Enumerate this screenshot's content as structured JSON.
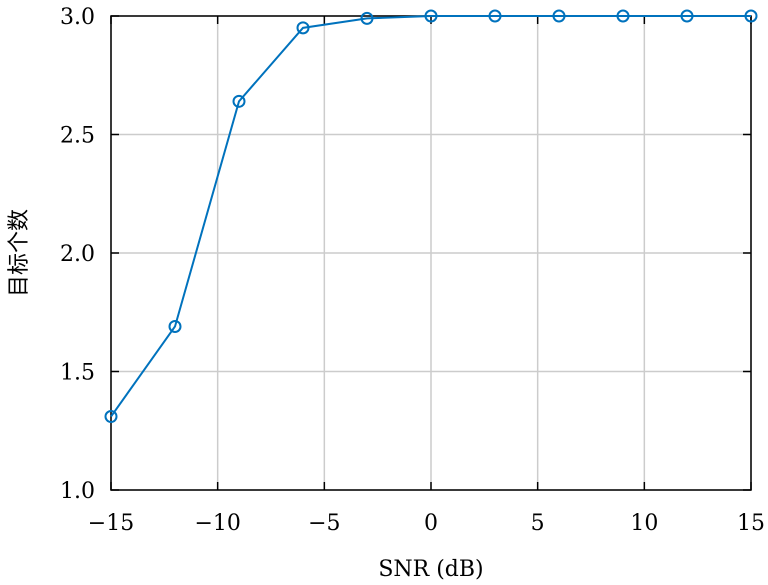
{
  "chart_data": {
    "type": "line",
    "title": "",
    "xlabel": "SNR (dB)",
    "ylabel": "目标个数",
    "xlim": [
      -15,
      15
    ],
    "ylim": [
      1.0,
      3.0
    ],
    "xticks": [
      -15,
      -10,
      -5,
      0,
      5,
      10,
      15
    ],
    "yticks": [
      1.0,
      1.5,
      2.0,
      2.5,
      3.0
    ],
    "xtick_labels": [
      "−15",
      "−10",
      "−5",
      "0",
      "5",
      "10",
      "15"
    ],
    "ytick_labels": [
      "1.0",
      "1.5",
      "2.0",
      "2.5",
      "3.0"
    ],
    "grid": true,
    "series": [
      {
        "color": "#0072bd",
        "marker": "circle",
        "x": [
          -15,
          -12,
          -9,
          -6,
          -3,
          0,
          3,
          6,
          9,
          12,
          15
        ],
        "y": [
          1.31,
          1.69,
          2.64,
          2.95,
          2.99,
          3.0,
          3.0,
          3.0,
          3.0,
          3.0,
          3.0
        ]
      }
    ]
  }
}
